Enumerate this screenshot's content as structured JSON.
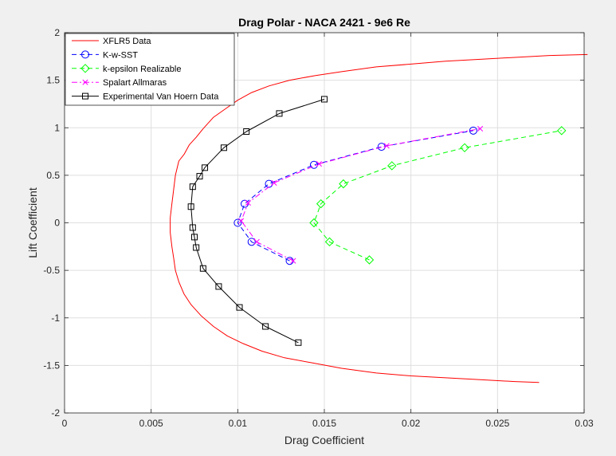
{
  "chart_data": {
    "type": "line",
    "title": "Drag Polar - NACA 2421 - 9e6 Re",
    "xlabel": "Drag Coefficient",
    "ylabel": "Lift Coefficient",
    "xlim": [
      0,
      0.03
    ],
    "ylim": [
      -2,
      2
    ],
    "xticks": [
      0,
      0.005,
      0.01,
      0.015,
      0.02,
      0.025,
      0.03
    ],
    "xtick_labels": [
      "0",
      "0.005",
      "0.01",
      "0.015",
      "0.02",
      "0.025",
      "0.03"
    ],
    "yticks": [
      -2,
      -1.5,
      -1,
      -0.5,
      0,
      0.5,
      1,
      1.5,
      2
    ],
    "ytick_labels": [
      "-2",
      "-1.5",
      "-1",
      "-0.5",
      "0",
      "0.5",
      "1",
      "1.5",
      "2"
    ],
    "grid": true,
    "legend_position": "top-left",
    "series": [
      {
        "name": "XFLR5 Data",
        "color": "#ff0000",
        "line_style": "solid",
        "marker": "none",
        "x": [
          0.0302,
          0.028,
          0.026,
          0.024,
          0.022,
          0.02,
          0.018,
          0.016,
          0.0145,
          0.013,
          0.0118,
          0.0108,
          0.01,
          0.0093,
          0.0086,
          0.008,
          0.0076,
          0.0072,
          0.0069,
          0.0066,
          0.0064,
          0.0063,
          0.0062,
          0.0061,
          0.0061,
          0.0062,
          0.0063,
          0.0064,
          0.0066,
          0.0069,
          0.0073,
          0.0079,
          0.0086,
          0.0094,
          0.0103,
          0.0114,
          0.0127,
          0.0142,
          0.016,
          0.018,
          0.02,
          0.022,
          0.024,
          0.026,
          0.0274
        ],
        "y": [
          1.77,
          1.76,
          1.74,
          1.72,
          1.7,
          1.67,
          1.64,
          1.59,
          1.55,
          1.5,
          1.44,
          1.37,
          1.29,
          1.2,
          1.11,
          0.99,
          0.9,
          0.82,
          0.72,
          0.65,
          0.5,
          0.35,
          0.2,
          0.05,
          -0.1,
          -0.25,
          -0.37,
          -0.5,
          -0.62,
          -0.75,
          -0.86,
          -0.98,
          -1.09,
          -1.19,
          -1.27,
          -1.35,
          -1.42,
          -1.47,
          -1.53,
          -1.58,
          -1.61,
          -1.63,
          -1.65,
          -1.67,
          -1.68
        ]
      },
      {
        "name": "K-w-SST",
        "color": "#0000ff",
        "line_style": "dashed",
        "marker": "circle",
        "x": [
          0.013,
          0.0108,
          0.01,
          0.0104,
          0.0118,
          0.0144,
          0.0183,
          0.0236
        ],
        "y": [
          -0.4,
          -0.2,
          0.0,
          0.2,
          0.41,
          0.61,
          0.8,
          0.97
        ]
      },
      {
        "name": "k-epsilon Realizable",
        "color": "#00ff00",
        "line_style": "dashed",
        "marker": "diamond",
        "x": [
          0.0176,
          0.0153,
          0.0144,
          0.0148,
          0.0161,
          0.0189,
          0.0231,
          0.0287
        ],
        "y": [
          -0.39,
          -0.2,
          0.0,
          0.2,
          0.41,
          0.6,
          0.79,
          0.97
        ]
      },
      {
        "name": "Spalart Allmaras",
        "color": "#ff00ff",
        "line_style": "dashdot",
        "marker": "x",
        "x": [
          0.0132,
          0.0111,
          0.0102,
          0.0106,
          0.0121,
          0.0147,
          0.0186,
          0.024
        ],
        "y": [
          -0.4,
          -0.2,
          0.02,
          0.21,
          0.42,
          0.62,
          0.81,
          0.99
        ]
      },
      {
        "name": "Experimental Van Hoern Data",
        "color": "#000000",
        "line_style": "solid",
        "marker": "square",
        "x": [
          0.0135,
          0.0116,
          0.0101,
          0.0089,
          0.008,
          0.0076,
          0.0075,
          0.0074,
          0.0073,
          0.0074,
          0.0078,
          0.0081,
          0.0092,
          0.0105,
          0.0124,
          0.015
        ],
        "y": [
          -1.26,
          -1.09,
          -0.89,
          -0.67,
          -0.48,
          -0.26,
          -0.15,
          -0.05,
          0.17,
          0.38,
          0.49,
          0.58,
          0.79,
          0.96,
          1.15,
          1.3
        ]
      }
    ]
  }
}
